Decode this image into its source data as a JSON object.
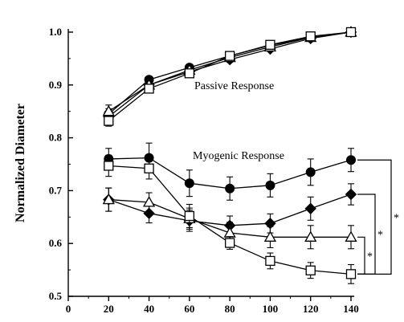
{
  "chart_data": {
    "type": "line",
    "title": "",
    "xlabel": "",
    "ylabel": "Normalized Diameter",
    "xlim": [
      0,
      140
    ],
    "ylim": [
      0.5,
      1.0
    ],
    "x_ticks": [
      0,
      20,
      40,
      60,
      80,
      100,
      120,
      140
    ],
    "x_tick_labels": [
      "0",
      "20",
      "40",
      "60",
      "80",
      "100",
      "120",
      "140"
    ],
    "y_ticks": [
      0.5,
      0.6,
      0.7,
      0.8,
      0.9,
      1.0
    ],
    "y_tick_labels": [
      "0.5",
      "0.6",
      "0.7",
      "0.8",
      "0.9",
      "1.0"
    ],
    "grid": false,
    "legend": "none",
    "annotations": [
      "Passive Response",
      "Myogenic Response"
    ],
    "significance_marker": "*",
    "x": [
      20,
      40,
      60,
      80,
      100,
      120,
      140
    ],
    "series": [
      {
        "marker": "filled-circle",
        "group": "passive",
        "values": [
          0.845,
          0.91,
          0.933,
          0.955,
          0.975,
          0.99,
          1.0
        ],
        "errors": [
          0.01,
          0.006,
          0.005,
          0.005,
          0.004,
          0.004,
          0.003
        ]
      },
      {
        "marker": "filled-diamond",
        "group": "passive",
        "values": [
          0.84,
          0.9,
          0.925,
          0.948,
          0.968,
          0.988,
          1.0
        ],
        "errors": [
          0.01,
          0.006,
          0.005,
          0.005,
          0.004,
          0.004,
          0.003
        ]
      },
      {
        "marker": "open-triangle",
        "group": "passive",
        "values": [
          0.85,
          0.9,
          0.928,
          0.952,
          0.972,
          0.99,
          1.0
        ],
        "errors": [
          0.012,
          0.006,
          0.005,
          0.005,
          0.004,
          0.004,
          0.003
        ]
      },
      {
        "marker": "open-square",
        "group": "passive",
        "values": [
          0.832,
          0.893,
          0.922,
          0.955,
          0.976,
          0.992,
          1.0
        ],
        "errors": [
          0.01,
          0.006,
          0.005,
          0.005,
          0.004,
          0.004,
          0.003
        ]
      },
      {
        "marker": "filled-circle",
        "group": "myogenic",
        "values": [
          0.76,
          0.762,
          0.714,
          0.704,
          0.71,
          0.735,
          0.758
        ],
        "errors": [
          0.02,
          0.028,
          0.025,
          0.022,
          0.022,
          0.025,
          0.022
        ]
      },
      {
        "marker": "filled-diamond",
        "group": "myogenic",
        "values": [
          0.683,
          0.657,
          0.643,
          0.634,
          0.638,
          0.666,
          0.693
        ],
        "errors": [
          0.022,
          0.018,
          0.02,
          0.018,
          0.018,
          0.022,
          0.02
        ]
      },
      {
        "marker": "open-triangle",
        "group": "myogenic",
        "values": [
          0.683,
          0.678,
          0.647,
          0.62,
          0.612,
          0.612,
          0.612
        ],
        "errors": [
          0.022,
          0.018,
          0.02,
          0.02,
          0.02,
          0.022,
          0.022
        ]
      },
      {
        "marker": "open-square",
        "group": "myogenic",
        "values": [
          0.747,
          0.742,
          0.652,
          0.601,
          0.567,
          0.549,
          0.542
        ],
        "errors": [
          0.02,
          0.02,
          0.022,
          0.012,
          0.015,
          0.015,
          0.018
        ]
      }
    ],
    "brackets": [
      {
        "from_series": 5,
        "to_series": 7
      },
      {
        "from_series": 4,
        "to_series": 7
      },
      {
        "from_series": 6,
        "to_series": 7
      }
    ]
  }
}
